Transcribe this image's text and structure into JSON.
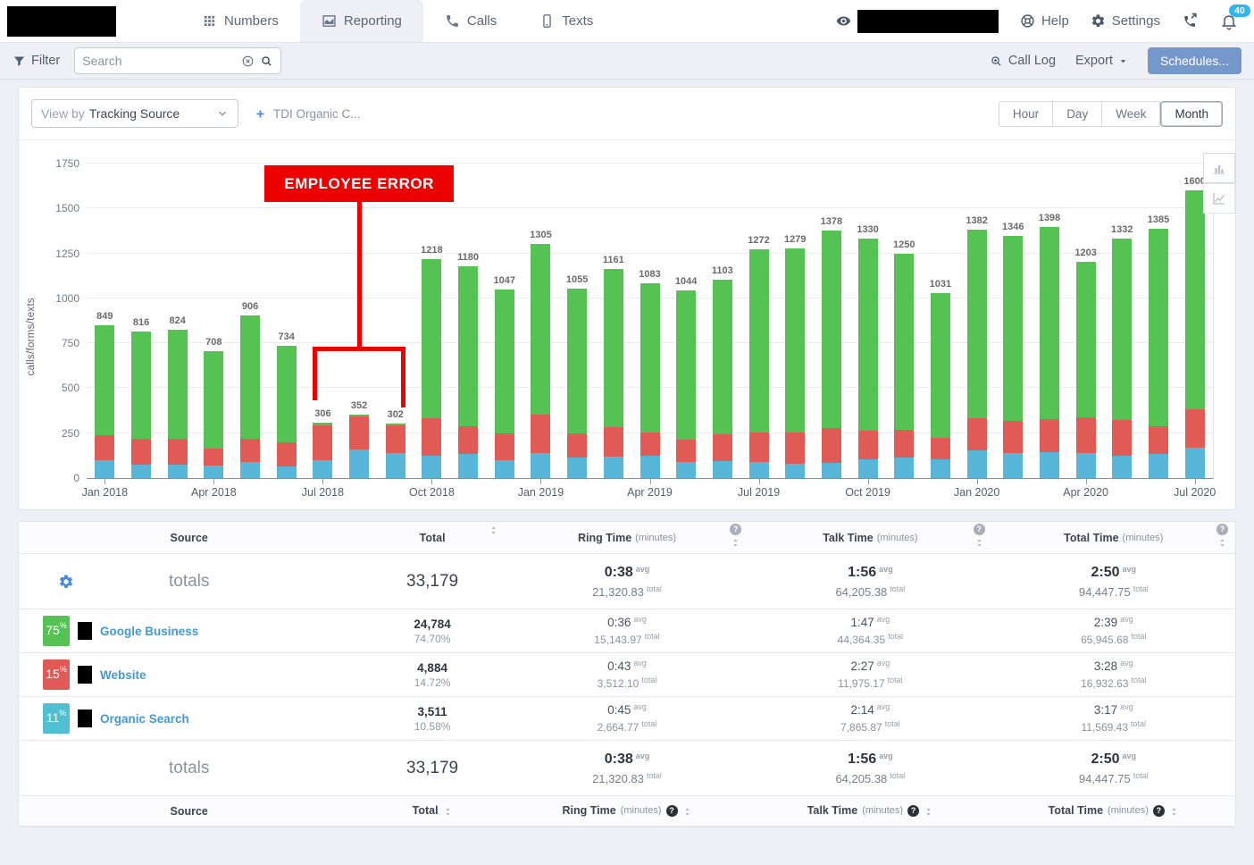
{
  "nav": {
    "tabs": [
      {
        "label": "Numbers",
        "icon": "grid-icon",
        "active": false
      },
      {
        "label": "Reporting",
        "icon": "report-chart-icon",
        "active": true
      },
      {
        "label": "Calls",
        "icon": "phone-icon",
        "active": false
      },
      {
        "label": "Texts",
        "icon": "mobile-icon",
        "active": false
      }
    ],
    "help_label": "Help",
    "settings_label": "Settings",
    "notification_count": "40"
  },
  "toolbar": {
    "filter_label": "Filter",
    "search_placeholder": "Search",
    "call_log_label": "Call Log",
    "export_label": "Export",
    "schedules_label": "Schedules..."
  },
  "chart": {
    "view_by_label": "View by",
    "view_by_value": "Tracking Source",
    "source_chip": "TDI Organic C...",
    "ranges": [
      "Hour",
      "Day",
      "Week",
      "Month"
    ],
    "active_range": "Month"
  },
  "chart_data": {
    "type": "bar",
    "stacked": true,
    "ylabel": "calls/forms/texts",
    "ylim": [
      0,
      1750
    ],
    "ytick_step": 250,
    "grid": true,
    "categories": [
      "Jan 2018",
      "Feb 2018",
      "Mar 2018",
      "Apr 2018",
      "May 2018",
      "Jun 2018",
      "Jul 2018",
      "Aug 2018",
      "Sep 2018",
      "Oct 2018",
      "Nov 2018",
      "Dec 2018",
      "Jan 2019",
      "Feb 2019",
      "Mar 2019",
      "Apr 2019",
      "May 2019",
      "Jun 2019",
      "Jul 2019",
      "Aug 2019",
      "Sep 2019",
      "Oct 2019",
      "Nov 2019",
      "Dec 2019",
      "Jan 2020",
      "Feb 2020",
      "Mar 2020",
      "Apr 2020",
      "May 2020",
      "Jun 2020",
      "Jul 2020"
    ],
    "x_tick_labels": [
      "Jan 2018",
      "Apr 2018",
      "Jul 2018",
      "Oct 2018",
      "Jan 2019",
      "Apr 2019",
      "Jul 2019",
      "Oct 2019",
      "Jan 2020",
      "Apr 2020",
      "Jul 2020"
    ],
    "totals": [
      849,
      816,
      824,
      708,
      906,
      734,
      306,
      352,
      302,
      1218,
      1180,
      1047,
      1305,
      1055,
      1161,
      1083,
      1044,
      1103,
      1272,
      1279,
      1378,
      1330,
      1250,
      1031,
      1382,
      1346,
      1398,
      1203,
      1332,
      1385,
      1600
    ],
    "series": [
      {
        "name": "Organic Search",
        "color": "#58b7d8",
        "values": [
          100,
          75,
          75,
          70,
          90,
          65,
          100,
          160,
          140,
          125,
          135,
          100,
          140,
          115,
          120,
          125,
          90,
          95,
          90,
          80,
          85,
          105,
          115,
          105,
          155,
          140,
          145,
          140,
          125,
          135,
          170
        ]
      },
      {
        "name": "Website",
        "color": "#e05a56",
        "values": [
          140,
          145,
          145,
          95,
          130,
          135,
          195,
          185,
          153,
          210,
          155,
          150,
          215,
          135,
          165,
          130,
          125,
          150,
          165,
          175,
          195,
          160,
          155,
          120,
          180,
          180,
          185,
          200,
          200,
          155,
          215
        ]
      },
      {
        "name": "Google Business",
        "color": "#55c353",
        "values": [
          609,
          596,
          604,
          543,
          686,
          534,
          11,
          7,
          9,
          883,
          890,
          797,
          950,
          805,
          876,
          828,
          829,
          858,
          1017,
          1024,
          1098,
          1065,
          980,
          806,
          1047,
          1026,
          1068,
          863,
          1007,
          1095,
          1215
        ]
      }
    ],
    "annotation": {
      "label": "EMPLOYEE ERROR",
      "color": "#ec0000",
      "target_indices": [
        6,
        7,
        8
      ]
    }
  },
  "table": {
    "columns": [
      {
        "label": "Source",
        "sortable": false,
        "help": false
      },
      {
        "label": "Total",
        "sortable": true,
        "help": false
      },
      {
        "label": "Ring Time",
        "sub": "(minutes)",
        "sortable": true,
        "help": true
      },
      {
        "label": "Talk Time",
        "sub": "(minutes)",
        "sortable": true,
        "help": true
      },
      {
        "label": "Total Time",
        "sub": "(minutes)",
        "sortable": true,
        "help": true
      }
    ],
    "units": {
      "avg": "avg",
      "total": "total"
    },
    "totals": {
      "label": "totals",
      "total": "33,179",
      "ring": {
        "avg": "0:38",
        "total": "21,320.83"
      },
      "talk": {
        "avg": "1:56",
        "total": "64,205.38"
      },
      "total_time": {
        "avg": "2:50",
        "total": "94,447.75"
      }
    },
    "rows": [
      {
        "percent": "75%",
        "badge_color": "#55c353",
        "name": "Google Business",
        "total": "24,784",
        "share": "74.70%",
        "ring": {
          "avg": "0:36",
          "total": "15,143.97"
        },
        "talk": {
          "avg": "1:47",
          "total": "44,364.35"
        },
        "total_time": {
          "avg": "2:39",
          "total": "65,945.68"
        }
      },
      {
        "percent": "15%",
        "badge_color": "#e05a56",
        "name": "Website",
        "total": "4,884",
        "share": "14.72%",
        "ring": {
          "avg": "0:43",
          "total": "3,512.10"
        },
        "talk": {
          "avg": "2:27",
          "total": "11,975.17"
        },
        "total_time": {
          "avg": "3:28",
          "total": "16,932.63"
        }
      },
      {
        "percent": "11%",
        "badge_color": "#4fbfd2",
        "name": "Organic Search",
        "total": "3,511",
        "share": "10.58%",
        "ring": {
          "avg": "0:45",
          "total": "2,664.77"
        },
        "talk": {
          "avg": "2:14",
          "total": "7,865.87"
        },
        "total_time": {
          "avg": "3:17",
          "total": "11,569.43"
        }
      }
    ]
  },
  "colors": {
    "link_blue": "#4599d2",
    "button_blue": "#7598cb",
    "badge_blue": "#30b5f2",
    "gear_blue": "#4a89dc",
    "annotation_red": "#ec0000"
  }
}
